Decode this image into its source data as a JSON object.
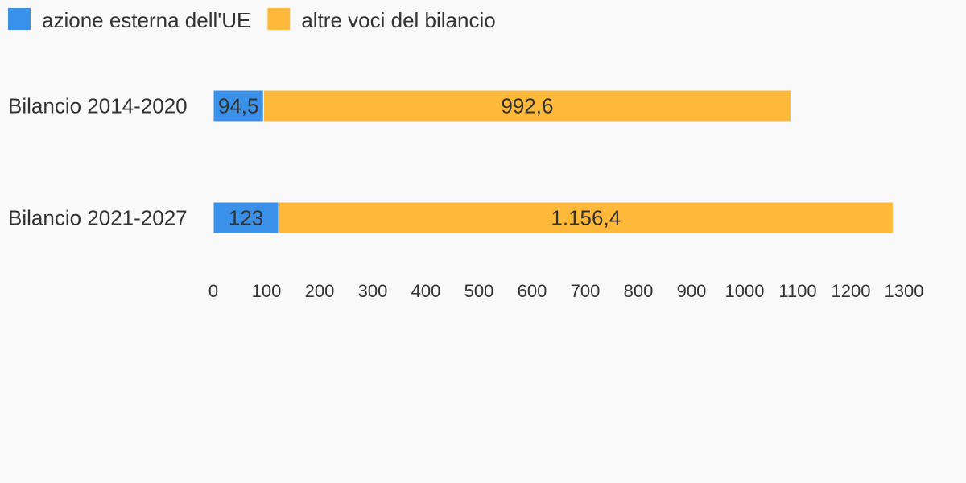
{
  "chart_data": {
    "type": "stacked-barh",
    "categories": [
      "Bilancio 2014-2020",
      "Bilancio 2021-2027"
    ],
    "series": [
      {
        "name": "azione esterna dell'UE",
        "color": "#3a91ea",
        "values": [
          94.5,
          123
        ],
        "value_labels": [
          "94,5",
          "123"
        ]
      },
      {
        "name": "altre voci del bilancio",
        "color": "#ffb93a",
        "values": [
          992.6,
          1156.4
        ],
        "value_labels": [
          "992,6",
          "1.156,4"
        ]
      }
    ],
    "xlim": [
      0,
      1300
    ],
    "xticks": [
      0,
      100,
      200,
      300,
      400,
      500,
      600,
      700,
      800,
      900,
      1000,
      1100,
      1200,
      1300
    ],
    "legend": "top-left"
  }
}
